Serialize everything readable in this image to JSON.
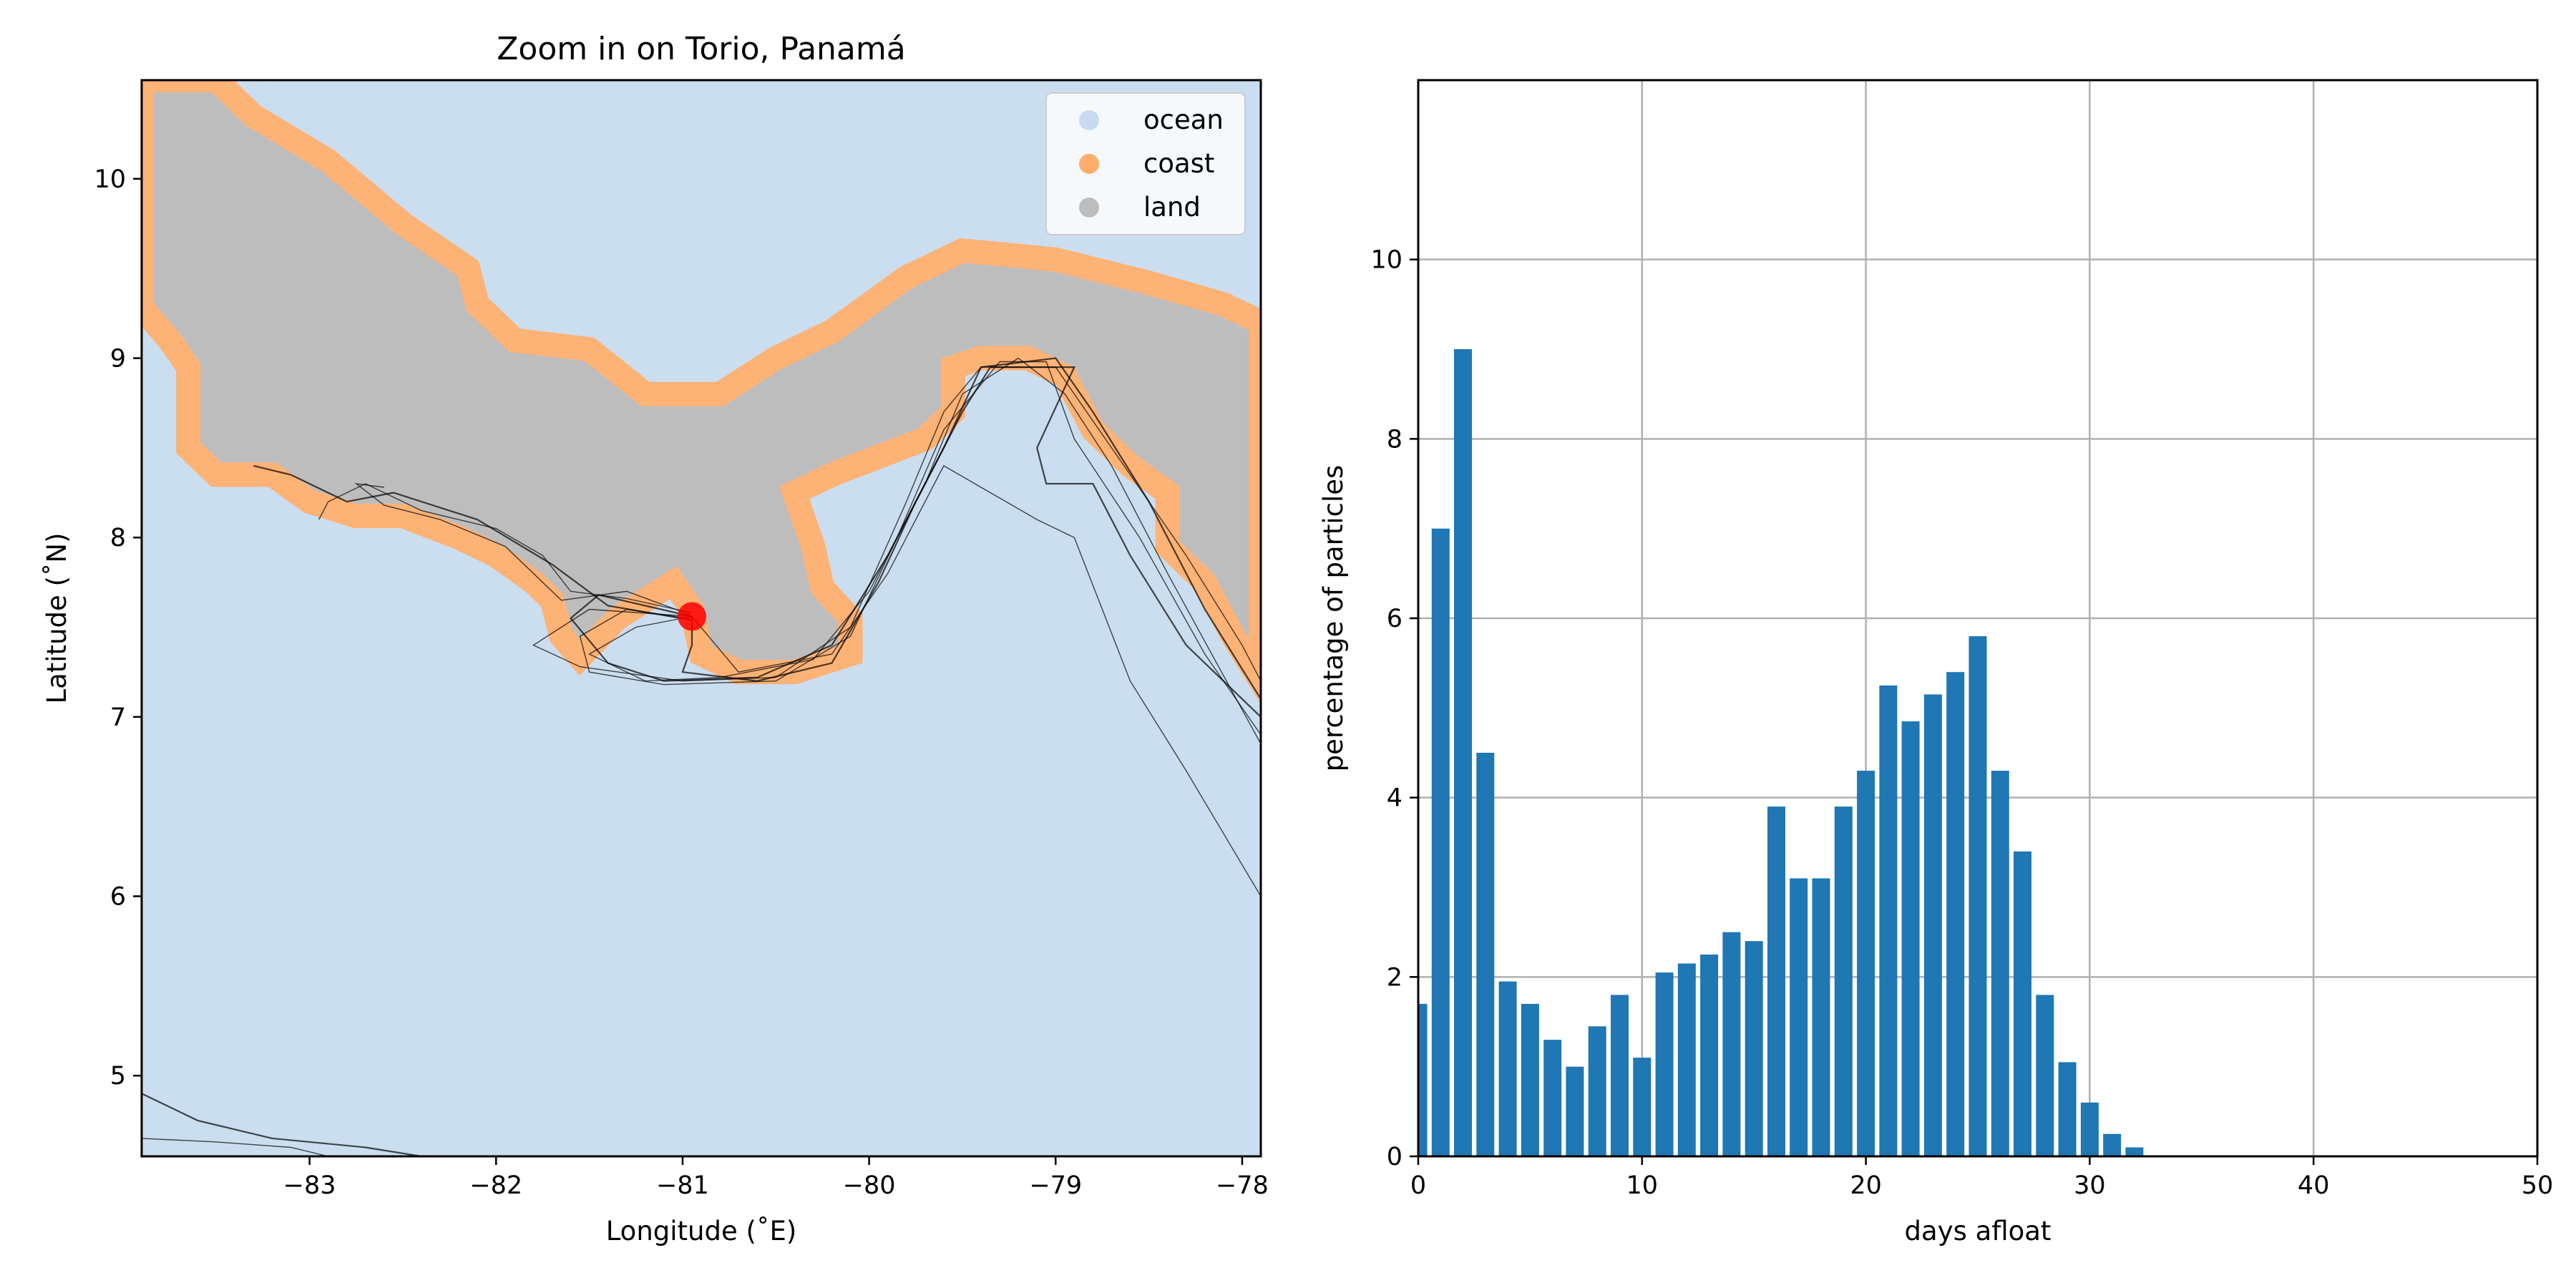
{
  "chart_data": [
    {
      "type": "map",
      "title": "Zoom in on Torio, Panamá",
      "xlabel": "Longitude (˚E)",
      "ylabel": "Latitude (˚N)",
      "xlim": [
        -83.9,
        -77.9
      ],
      "ylim": [
        4.55,
        10.55
      ],
      "xticks": [
        -83,
        -82,
        -81,
        -80,
        -79,
        -78
      ],
      "yticks": [
        5,
        6,
        7,
        8,
        9,
        10
      ],
      "xtick_labels": [
        "−83",
        "−82",
        "−81",
        "−80",
        "−79",
        "−78"
      ],
      "ytick_labels": [
        "5",
        "6",
        "7",
        "8",
        "9",
        "10"
      ],
      "legend": {
        "placement": "top-right",
        "entries": [
          {
            "label": "ocean",
            "color": "#c6dbef"
          },
          {
            "label": "coast",
            "color": "#fdae6b"
          },
          {
            "label": "land",
            "color": "#bdbdbd"
          }
        ]
      },
      "colors": {
        "ocean": "#cbdeef",
        "land": "#bdbdbd",
        "coast": "#fdb276",
        "trajectory": "#000000",
        "release_point": "#ff0000"
      },
      "release_point": {
        "lon": -80.95,
        "lat": 7.56
      },
      "coast_outline": [
        [
          -83.9,
          9.28
        ],
        [
          -83.75,
          9.1
        ],
        [
          -83.65,
          8.95
        ],
        [
          -83.65,
          8.5
        ],
        [
          -83.5,
          8.35
        ],
        [
          -83.2,
          8.35
        ],
        [
          -83.0,
          8.2
        ],
        [
          -82.75,
          8.12
        ],
        [
          -82.5,
          8.12
        ],
        [
          -82.2,
          8.0
        ],
        [
          -82.0,
          7.9
        ],
        [
          -81.8,
          7.75
        ],
        [
          -81.7,
          7.65
        ],
        [
          -81.65,
          7.45
        ],
        [
          -81.55,
          7.33
        ],
        [
          -81.35,
          7.55
        ],
        [
          -81.2,
          7.65
        ],
        [
          -81.05,
          7.75
        ],
        [
          -80.95,
          7.6
        ],
        [
          -80.9,
          7.35
        ],
        [
          -80.7,
          7.25
        ],
        [
          -80.4,
          7.25
        ],
        [
          -80.1,
          7.35
        ],
        [
          -80.1,
          7.55
        ],
        [
          -80.25,
          7.72
        ],
        [
          -80.3,
          7.95
        ],
        [
          -80.4,
          8.25
        ],
        [
          -80.2,
          8.35
        ],
        [
          -79.95,
          8.45
        ],
        [
          -79.7,
          8.55
        ],
        [
          -79.55,
          8.7
        ],
        [
          -79.55,
          8.95
        ],
        [
          -79.4,
          9.0
        ],
        [
          -79.15,
          9.0
        ],
        [
          -78.95,
          8.9
        ],
        [
          -78.8,
          8.6
        ],
        [
          -78.6,
          8.4
        ],
        [
          -78.4,
          8.25
        ],
        [
          -78.4,
          7.95
        ],
        [
          -78.2,
          7.75
        ],
        [
          -78.05,
          7.45
        ],
        [
          -77.9,
          7.2
        ],
        [
          -77.9,
          9.2
        ],
        [
          -78.1,
          9.3
        ],
        [
          -78.5,
          9.42
        ],
        [
          -79.0,
          9.55
        ],
        [
          -79.5,
          9.6
        ],
        [
          -79.8,
          9.45
        ],
        [
          -80.2,
          9.15
        ],
        [
          -80.5,
          9.0
        ],
        [
          -80.8,
          8.8
        ],
        [
          -81.2,
          8.8
        ],
        [
          -81.5,
          9.05
        ],
        [
          -81.9,
          9.1
        ],
        [
          -82.1,
          9.3
        ],
        [
          -82.15,
          9.5
        ],
        [
          -82.5,
          9.75
        ],
        [
          -82.9,
          10.1
        ],
        [
          -83.3,
          10.35
        ],
        [
          -83.5,
          10.55
        ],
        [
          -83.9,
          10.55
        ]
      ],
      "trajectories": [
        [
          [
            -80.95,
            7.56
          ],
          [
            -81.2,
            7.62
          ],
          [
            -81.45,
            7.68
          ],
          [
            -81.6,
            7.55
          ],
          [
            -81.4,
            7.3
          ],
          [
            -81.1,
            7.2
          ],
          [
            -80.6,
            7.22
          ],
          [
            -80.2,
            7.4
          ],
          [
            -79.9,
            7.9
          ],
          [
            -79.6,
            8.5
          ],
          [
            -79.4,
            8.95
          ],
          [
            -79.0,
            9.0
          ],
          [
            -78.8,
            8.7
          ],
          [
            -78.5,
            8.2
          ],
          [
            -78.2,
            7.6
          ],
          [
            -77.9,
            7.1
          ]
        ],
        [
          [
            -80.95,
            7.58
          ],
          [
            -81.3,
            7.66
          ],
          [
            -81.6,
            7.7
          ],
          [
            -81.75,
            7.9
          ],
          [
            -82.0,
            8.05
          ],
          [
            -82.4,
            8.15
          ],
          [
            -82.7,
            8.3
          ],
          [
            -82.9,
            8.2
          ],
          [
            -82.95,
            8.1
          ]
        ],
        [
          [
            -80.98,
            7.55
          ],
          [
            -81.3,
            7.6
          ],
          [
            -81.55,
            7.45
          ],
          [
            -81.5,
            7.25
          ],
          [
            -81.1,
            7.18
          ],
          [
            -80.5,
            7.2
          ],
          [
            -80.1,
            7.45
          ],
          [
            -79.85,
            8.0
          ],
          [
            -79.6,
            8.6
          ],
          [
            -79.3,
            8.98
          ],
          [
            -79.05,
            8.98
          ],
          [
            -78.9,
            8.55
          ],
          [
            -78.55,
            8.0
          ],
          [
            -78.2,
            7.35
          ],
          [
            -77.9,
            6.9
          ]
        ],
        [
          [
            -80.95,
            7.54
          ],
          [
            -81.4,
            7.62
          ],
          [
            -81.7,
            7.85
          ],
          [
            -82.1,
            8.1
          ],
          [
            -82.55,
            8.25
          ],
          [
            -82.8,
            8.2
          ],
          [
            -83.1,
            8.35
          ],
          [
            -83.3,
            8.4
          ]
        ],
        [
          [
            -80.95,
            7.56
          ],
          [
            -81.25,
            7.5
          ],
          [
            -81.5,
            7.35
          ],
          [
            -81.2,
            7.2
          ],
          [
            -80.8,
            7.22
          ],
          [
            -80.3,
            7.32
          ],
          [
            -80.0,
            7.7
          ],
          [
            -79.7,
            8.3
          ],
          [
            -79.5,
            8.8
          ],
          [
            -79.2,
            9.0
          ],
          [
            -78.95,
            8.8
          ],
          [
            -78.7,
            8.4
          ],
          [
            -78.4,
            7.8
          ],
          [
            -77.9,
            6.85
          ]
        ],
        [
          [
            -80.96,
            7.57
          ],
          [
            -81.3,
            7.7
          ],
          [
            -81.65,
            7.65
          ],
          [
            -81.95,
            7.95
          ],
          [
            -82.3,
            8.1
          ],
          [
            -82.6,
            8.18
          ],
          [
            -82.75,
            8.3
          ],
          [
            -82.6,
            8.28
          ]
        ],
        [
          [
            -80.95,
            7.56
          ],
          [
            -80.95,
            7.4
          ],
          [
            -81.0,
            7.25
          ],
          [
            -80.6,
            7.2
          ],
          [
            -80.2,
            7.3
          ],
          [
            -79.95,
            7.75
          ],
          [
            -79.75,
            8.2
          ],
          [
            -79.5,
            8.7
          ],
          [
            -79.35,
            8.95
          ],
          [
            -78.9,
            8.95
          ],
          [
            -79.1,
            8.5
          ],
          [
            -79.05,
            8.3
          ],
          [
            -78.8,
            8.3
          ],
          [
            -78.6,
            7.9
          ],
          [
            -78.3,
            7.4
          ],
          [
            -77.9,
            7.0
          ]
        ],
        [
          [
            -80.95,
            7.56
          ],
          [
            -81.5,
            7.6
          ],
          [
            -81.8,
            7.4
          ],
          [
            -81.55,
            7.28
          ],
          [
            -81.0,
            7.2
          ],
          [
            -80.5,
            7.22
          ],
          [
            -80.1,
            7.5
          ],
          [
            -79.8,
            8.2
          ],
          [
            -79.6,
            8.7
          ],
          [
            -79.4,
            8.95
          ],
          [
            -79.0,
            8.95
          ],
          [
            -78.7,
            8.5
          ],
          [
            -78.3,
            7.9
          ],
          [
            -78.0,
            7.4
          ],
          [
            -77.9,
            7.2
          ]
        ],
        [
          [
            -80.95,
            7.56
          ],
          [
            -80.7,
            7.25
          ],
          [
            -80.2,
            7.35
          ],
          [
            -79.9,
            7.8
          ],
          [
            -79.6,
            8.4
          ],
          [
            -79.1,
            8.1
          ],
          [
            -78.9,
            8.0
          ],
          [
            -78.6,
            7.2
          ],
          [
            -78.3,
            6.7
          ],
          [
            -77.9,
            6.0
          ]
        ],
        [
          [
            -83.9,
            4.9
          ],
          [
            -83.6,
            4.75
          ],
          [
            -83.2,
            4.65
          ],
          [
            -82.7,
            4.6
          ],
          [
            -82.4,
            4.55
          ]
        ],
        [
          [
            -83.9,
            4.65
          ],
          [
            -83.5,
            4.63
          ],
          [
            -83.1,
            4.6
          ],
          [
            -82.9,
            4.55
          ]
        ]
      ]
    },
    {
      "type": "bar",
      "xlabel": "days afloat",
      "ylabel": "percentage of particles",
      "xlim": [
        0,
        50
      ],
      "ylim": [
        0,
        12
      ],
      "xticks": [
        0,
        10,
        20,
        30,
        40,
        50
      ],
      "yticks": [
        0,
        2,
        4,
        6,
        8,
        10
      ],
      "grid": true,
      "bar_color": "#1f77b4",
      "x": [
        0,
        1,
        2,
        3,
        4,
        5,
        6,
        7,
        8,
        9,
        10,
        11,
        12,
        13,
        14,
        15,
        16,
        17,
        18,
        19,
        20,
        21,
        22,
        23,
        24,
        25,
        26,
        27,
        28,
        29,
        30,
        31,
        32
      ],
      "values": [
        1.7,
        7.0,
        9.0,
        4.5,
        1.95,
        1.7,
        1.3,
        1.0,
        1.45,
        1.8,
        1.1,
        2.05,
        2.15,
        2.25,
        2.5,
        2.4,
        3.9,
        3.1,
        3.1,
        3.9,
        4.3,
        5.25,
        4.85,
        5.15,
        5.4,
        5.8,
        4.3,
        3.4,
        1.8,
        1.05,
        0.6,
        0.25,
        0.1
      ]
    }
  ]
}
